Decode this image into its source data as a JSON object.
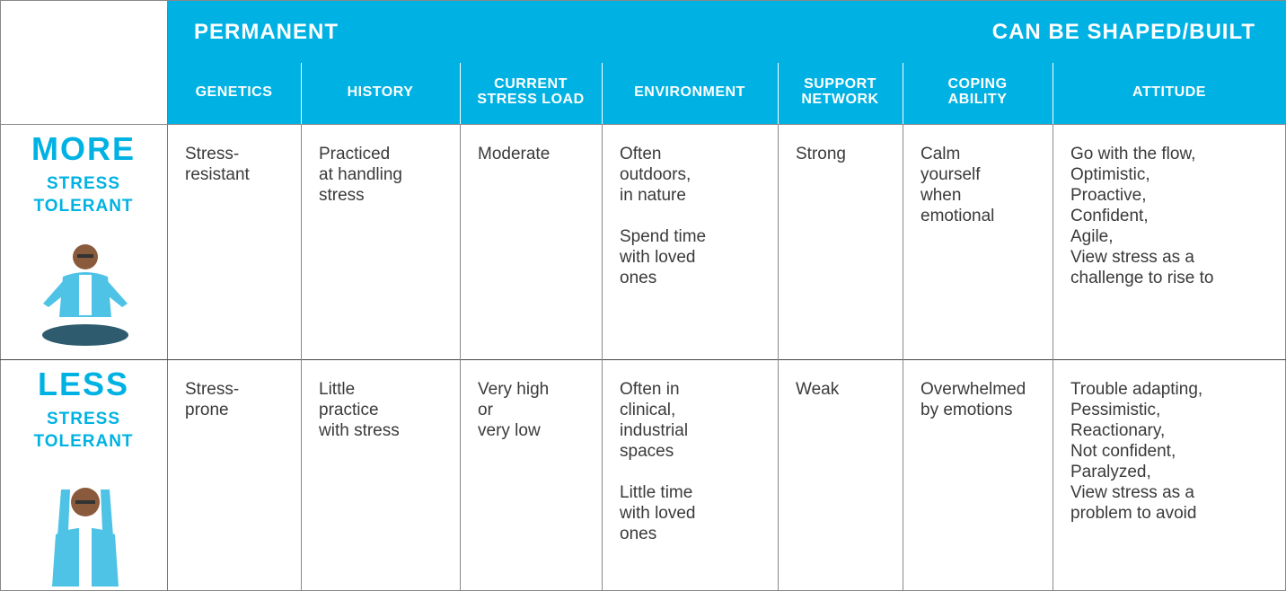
{
  "header": {
    "title_left": "PERMANENT",
    "title_right": "CAN BE SHAPED/BUILT"
  },
  "columns": [
    [
      "GENETICS"
    ],
    [
      "HISTORY"
    ],
    [
      "CURRENT",
      "STRESS LOAD"
    ],
    [
      "ENVIRONMENT"
    ],
    [
      "SUPPORT",
      "NETWORK"
    ],
    [
      "COPING",
      "ABILITY"
    ],
    [
      "ATTITUDE"
    ]
  ],
  "rows": [
    {
      "label": [
        "MORE",
        "STRESS",
        "TOLERANT"
      ],
      "cells": [
        [
          [
            "Stress-",
            "resistant"
          ]
        ],
        [
          [
            "Practiced",
            "at handling",
            "stress"
          ]
        ],
        [
          [
            "Moderate"
          ]
        ],
        [
          [
            "Often",
            "outdoors,",
            "in nature"
          ],
          [
            "Spend time",
            "with loved",
            "ones"
          ]
        ],
        [
          [
            "Strong"
          ]
        ],
        [
          [
            "Calm",
            "yourself",
            "when",
            "emotional"
          ]
        ],
        [
          [
            "Go with the flow,",
            "Optimistic,",
            "Proactive,",
            "Confident,",
            "Agile,",
            "View stress as a",
            "challenge to rise to"
          ]
        ]
      ]
    },
    {
      "label": [
        "LESS",
        "STRESS",
        "TOLERANT"
      ],
      "cells": [
        [
          [
            "Stress-",
            "prone"
          ]
        ],
        [
          [
            "Little",
            "practice",
            "with stress"
          ]
        ],
        [
          [
            "Very high",
            "or",
            "very low"
          ]
        ],
        [
          [
            "Often in",
            "clinical,",
            "industrial",
            "spaces"
          ],
          [
            "Little time",
            "with loved",
            "ones"
          ]
        ],
        [
          [
            "Weak"
          ]
        ],
        [
          [
            "Overwhelmed",
            "by emotions"
          ]
        ],
        [
          [
            "Trouble adapting,",
            "Pessimistic,",
            "Reactionary,",
            "Not confident,",
            "Paralyzed,",
            "View stress as a",
            "problem to avoid"
          ]
        ]
      ]
    }
  ]
}
